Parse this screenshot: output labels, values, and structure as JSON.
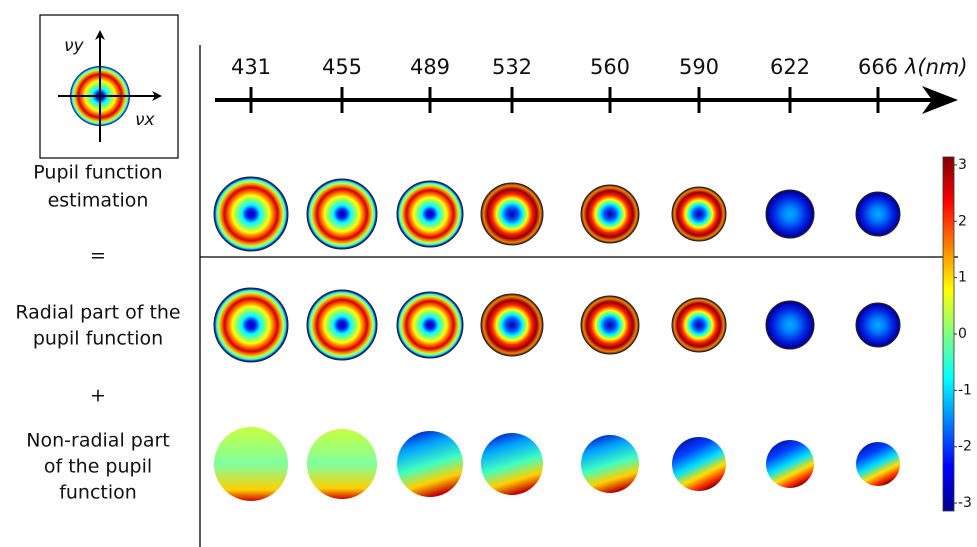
{
  "inset": {
    "nu_y": "νy",
    "nu_x": "νx"
  },
  "wavelength_axis": {
    "label": "λ(nm)",
    "values": [
      431,
      455,
      489,
      532,
      560,
      590,
      622,
      666
    ]
  },
  "rows": [
    {
      "label_lines": [
        "Pupil function",
        "estimation"
      ]
    },
    {
      "label_lines": [
        "Radial part of the",
        "pupil function"
      ]
    },
    {
      "label_lines": [
        "Non-radial part",
        "of the pupil",
        "function"
      ]
    }
  ],
  "operators": [
    "=",
    "+"
  ],
  "colorbar": {
    "lim": [
      -3.14,
      3.14
    ],
    "ticks": [
      3,
      2,
      1,
      0,
      -1,
      -2,
      -3
    ]
  }
}
